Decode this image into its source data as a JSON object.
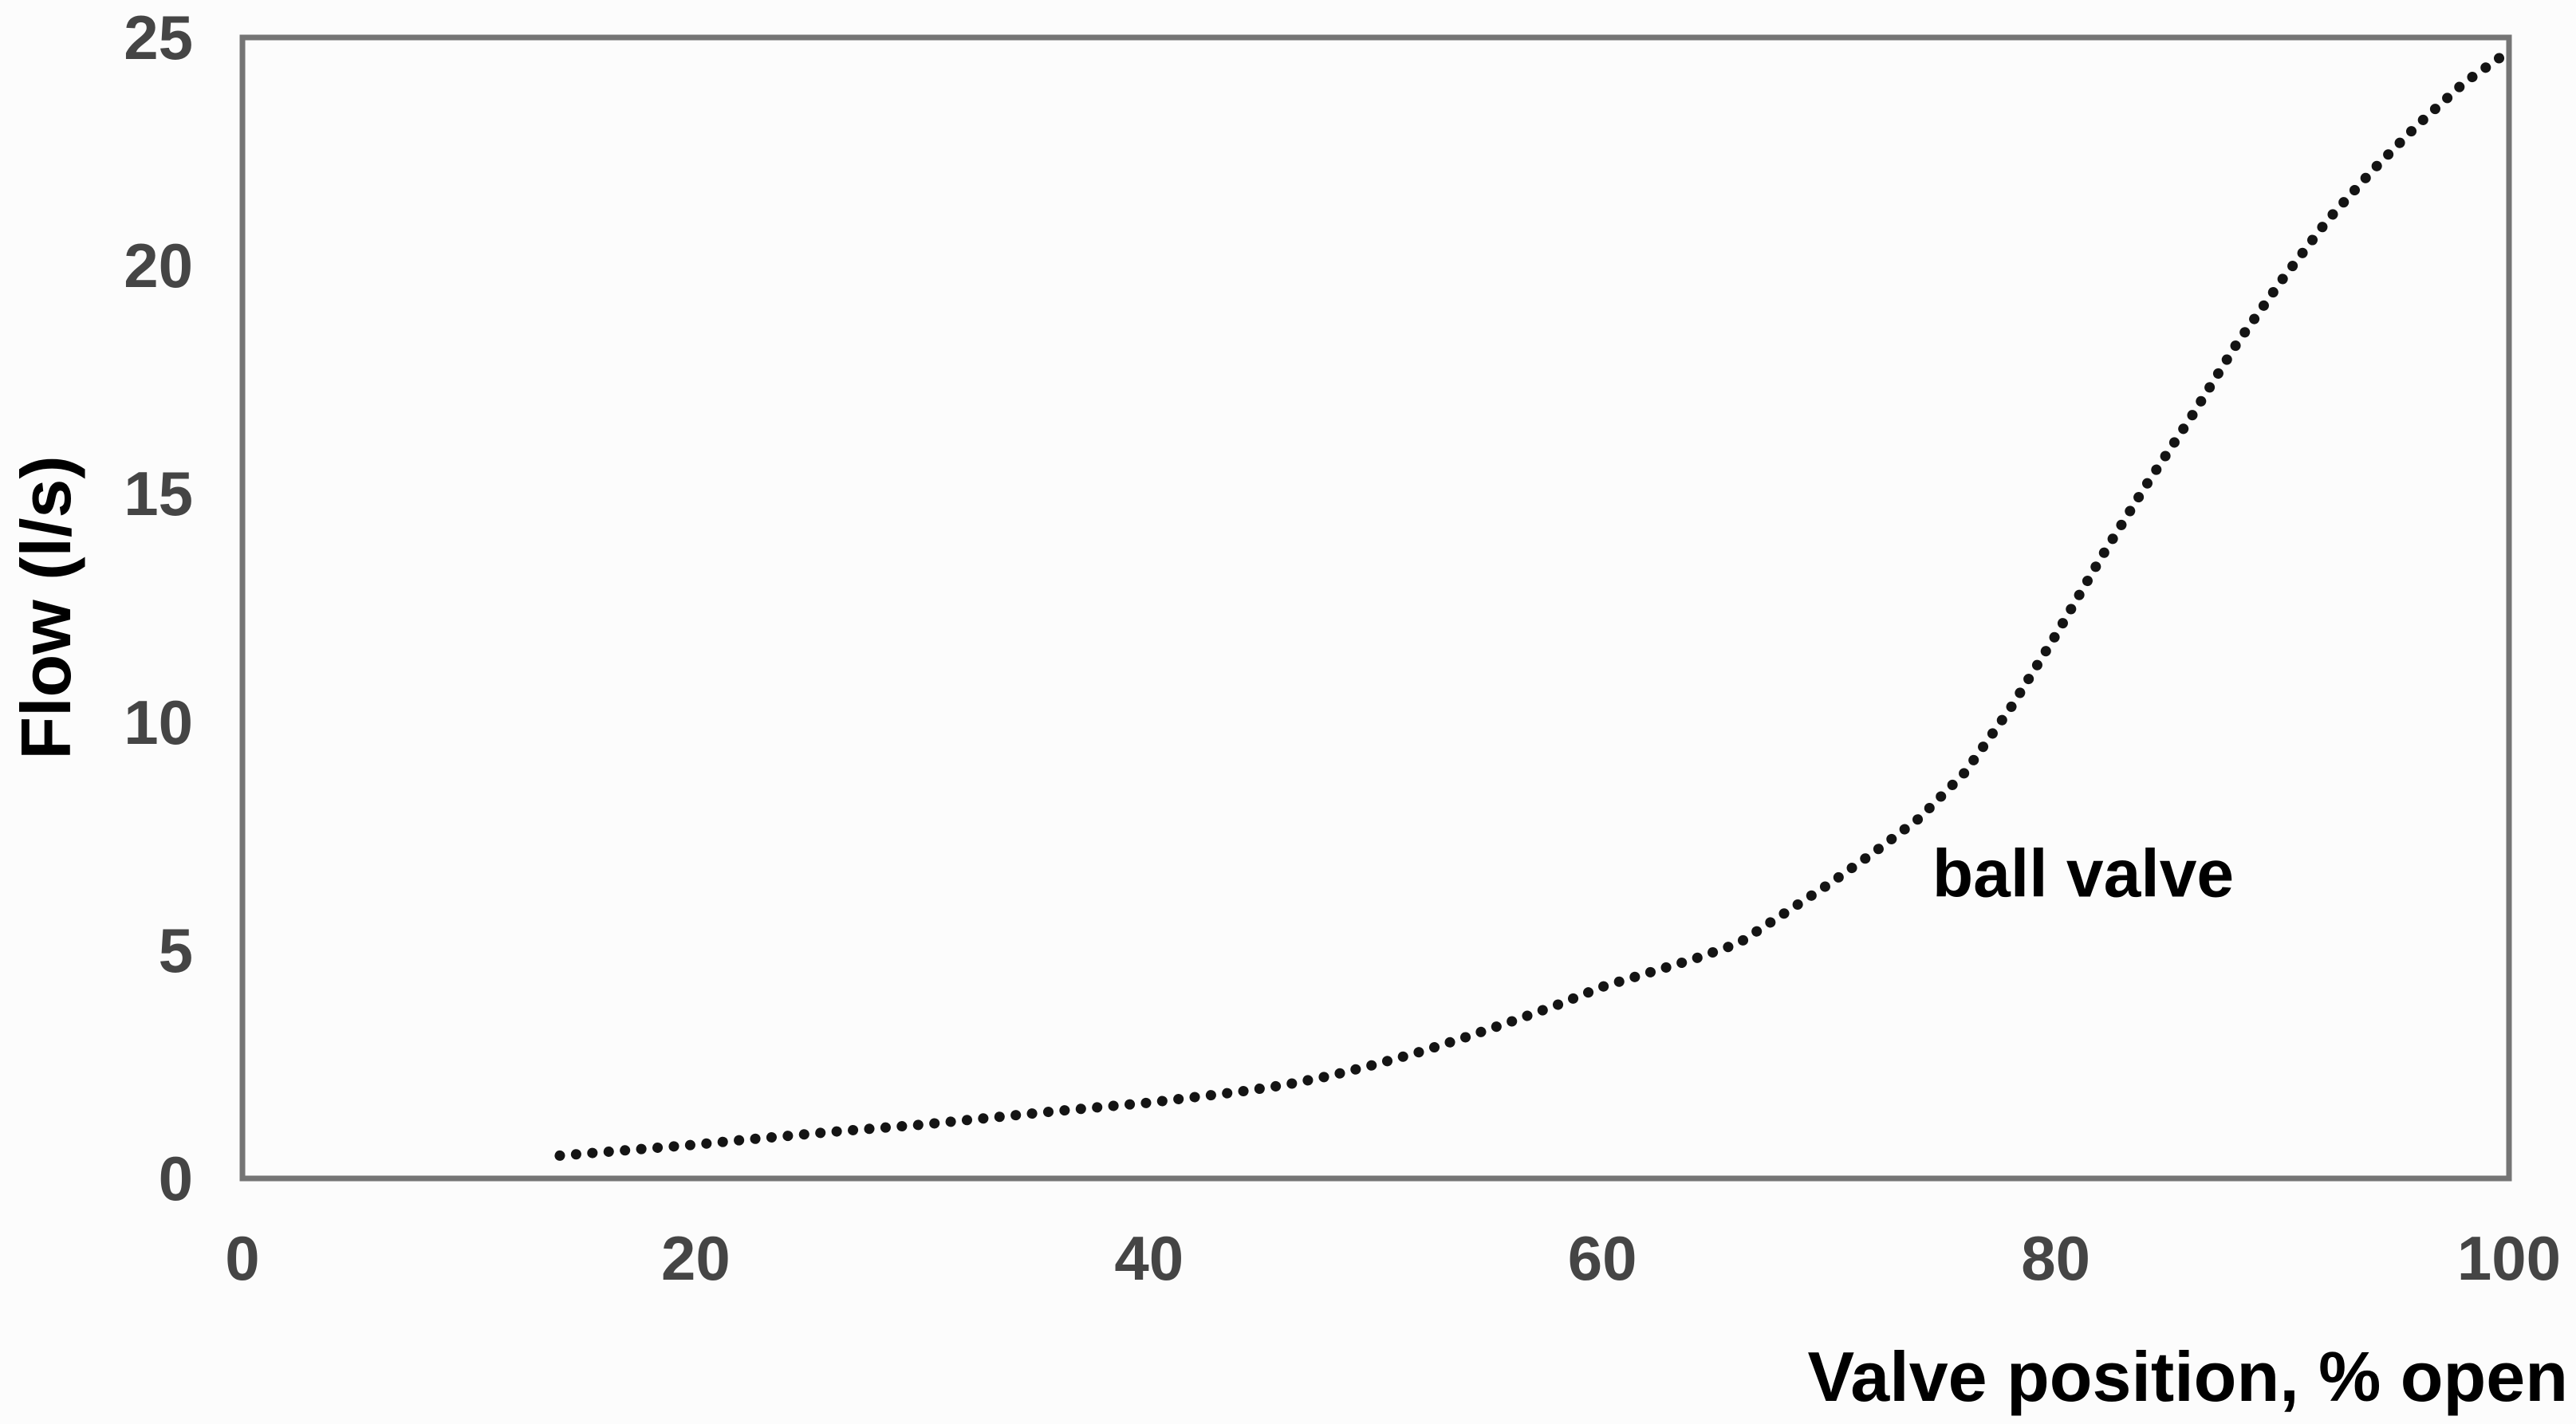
{
  "chart_data": {
    "type": "line",
    "line_style": "dotted",
    "title": "",
    "xlabel": "Valve position, % open",
    "ylabel": "Flow (l/s)",
    "xlim": [
      0,
      100
    ],
    "ylim": [
      0,
      25
    ],
    "x_ticks": [
      0,
      20,
      40,
      60,
      80,
      100
    ],
    "y_ticks": [
      0,
      5,
      10,
      15,
      20,
      25
    ],
    "grid": false,
    "legend_position": "none",
    "annotation": {
      "text": "ball valve",
      "x": 81,
      "y": 6.7
    },
    "series": [
      {
        "name": "ball valve",
        "x": [
          14,
          16,
          18,
          20,
          22,
          24,
          26,
          28,
          30,
          32,
          34,
          36,
          38,
          40,
          42,
          44,
          46,
          48,
          50,
          52,
          54,
          56,
          58,
          60,
          62,
          64,
          66,
          68,
          70,
          72,
          74,
          76,
          78,
          80,
          82,
          84,
          86,
          88,
          90,
          92,
          94,
          96,
          98,
          100
        ],
        "y": [
          0.5,
          0.58,
          0.66,
          0.74,
          0.84,
          0.93,
          1.02,
          1.1,
          1.18,
          1.28,
          1.38,
          1.48,
          1.57,
          1.66,
          1.78,
          1.9,
          2.05,
          2.25,
          2.5,
          2.78,
          3.1,
          3.44,
          3.8,
          4.2,
          4.5,
          4.8,
          5.15,
          5.8,
          6.45,
          7.15,
          7.9,
          8.9,
          10.3,
          11.9,
          13.6,
          15.2,
          16.7,
          18.3,
          19.7,
          21.0,
          22.1,
          23.1,
          24.0,
          24.7
        ]
      }
    ]
  },
  "colors": {
    "background": "#fcfcfc",
    "plot_border": "#757575",
    "dots": "#141414",
    "tick_labels": "#454545",
    "axis_titles": "#000000"
  }
}
